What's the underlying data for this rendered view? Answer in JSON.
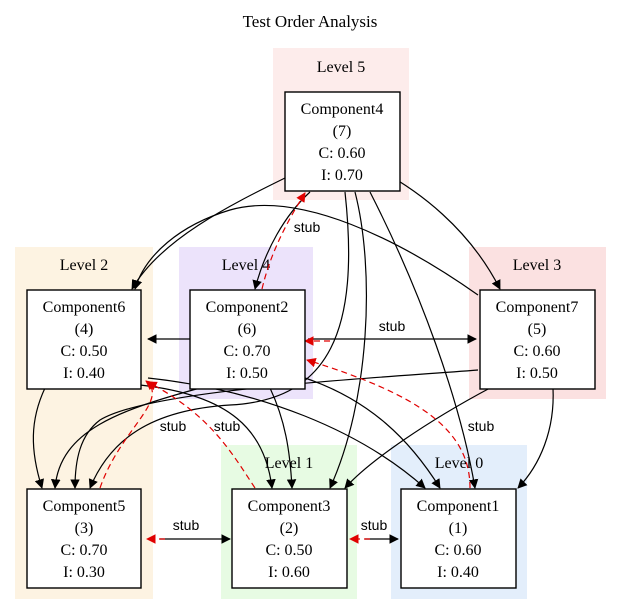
{
  "title": "Test Order Analysis",
  "colors": {
    "level5": "#fdeceb",
    "level4": "#ece3fb",
    "level3": "#fbe1e1",
    "level2": "#fdf3e2",
    "level1": "#e7fbe3",
    "level0": "#e3eefb",
    "stub_edge": "#e00000",
    "edge": "#000000"
  },
  "clusters": [
    {
      "id": "level5",
      "label": "Level 5"
    },
    {
      "id": "level4",
      "label": "Level 4"
    },
    {
      "id": "level3",
      "label": "Level 3"
    },
    {
      "id": "level2",
      "label": "Level 2"
    },
    {
      "id": "level1",
      "label": "Level 1"
    },
    {
      "id": "level0",
      "label": "Level 0"
    }
  ],
  "nodes": [
    {
      "id": "c4",
      "lines": [
        "Component4",
        "(7)",
        "C: 0.60",
        "I: 0.70"
      ]
    },
    {
      "id": "c6",
      "lines": [
        "Component6",
        "(4)",
        "C: 0.50",
        "I: 0.40"
      ]
    },
    {
      "id": "c2",
      "lines": [
        "Component2",
        "(6)",
        "C: 0.70",
        "I: 0.50"
      ]
    },
    {
      "id": "c7",
      "lines": [
        "Component7",
        "(5)",
        "C: 0.60",
        "I: 0.50"
      ]
    },
    {
      "id": "c5",
      "lines": [
        "Component5",
        "(3)",
        "C: 0.70",
        "I: 0.30"
      ]
    },
    {
      "id": "c3",
      "lines": [
        "Component3",
        "(2)",
        "C: 0.50",
        "I: 0.60"
      ]
    },
    {
      "id": "c1",
      "lines": [
        "Component1",
        "(1)",
        "C: 0.60",
        "I: 0.40"
      ]
    }
  ],
  "edge_labels": {
    "stub": "stub"
  }
}
